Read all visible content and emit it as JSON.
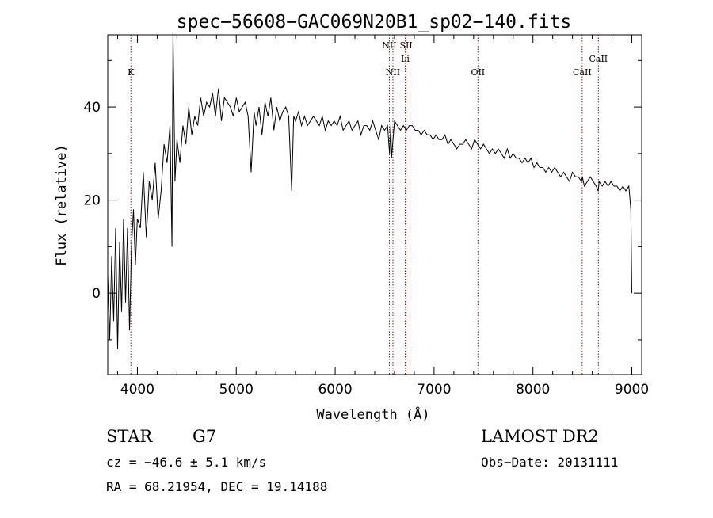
{
  "chart_data": {
    "type": "line",
    "title": "spec−56608−GAC069N20B1_sp02−140.fits",
    "xlabel": "Wavelength (Å)",
    "ylabel": "Flux (relative)",
    "xlim": [
      3700,
      9100
    ],
    "ylim": [
      -17.5,
      55.5
    ],
    "xticks": [
      4000,
      5000,
      6000,
      7000,
      8000,
      9000
    ],
    "yticks": [
      0,
      20,
      40
    ],
    "x_minor_step": 200,
    "y_minor_step": 10,
    "grid": false,
    "series": [
      {
        "x": [
          3700,
          3720,
          3740,
          3760,
          3780,
          3800,
          3820,
          3840,
          3860,
          3880,
          3900,
          3920,
          3940,
          3960,
          3980,
          4000,
          4030,
          4060,
          4090,
          4120,
          4150,
          4180,
          4210,
          4240,
          4270,
          4300,
          4330,
          4350,
          4360,
          4380,
          4400,
          4430,
          4460,
          4490,
          4520,
          4550,
          4580,
          4610,
          4640,
          4670,
          4700,
          4730,
          4760,
          4790,
          4820,
          4850,
          4880,
          4910,
          4940,
          4970,
          5000,
          5030,
          5060,
          5090,
          5120,
          5150,
          5180,
          5200,
          5230,
          5260,
          5290,
          5320,
          5350,
          5380,
          5410,
          5440,
          5470,
          5500,
          5530,
          5560,
          5580,
          5600,
          5630,
          5660,
          5690,
          5720,
          5750,
          5780,
          5810,
          5840,
          5870,
          5900,
          5930,
          5960,
          5990,
          6020,
          6050,
          6080,
          6110,
          6140,
          6170,
          6200,
          6230,
          6260,
          6290,
          6320,
          6350,
          6380,
          6410,
          6440,
          6470,
          6500,
          6530,
          6550,
          6563,
          6570,
          6600,
          6630,
          6660,
          6690,
          6720,
          6750,
          6780,
          6810,
          6840,
          6870,
          6900,
          6930,
          6960,
          6990,
          7020,
          7050,
          7080,
          7110,
          7140,
          7170,
          7200,
          7230,
          7260,
          7290,
          7320,
          7350,
          7380,
          7410,
          7440,
          7470,
          7500,
          7530,
          7560,
          7590,
          7620,
          7650,
          7680,
          7710,
          7740,
          7770,
          7800,
          7830,
          7860,
          7890,
          7920,
          7950,
          7980,
          8010,
          8040,
          8070,
          8100,
          8130,
          8160,
          8190,
          8220,
          8250,
          8280,
          8310,
          8340,
          8370,
          8400,
          8430,
          8460,
          8490,
          8500,
          8520,
          8550,
          8580,
          8610,
          8640,
          8660,
          8670,
          8700,
          8730,
          8760,
          8790,
          8820,
          8850,
          8880,
          8910,
          8940,
          8970,
          8990,
          9000
        ],
        "y": [
          4,
          -10,
          8,
          -6,
          14,
          -12,
          11,
          -4,
          16,
          -2,
          14,
          -8,
          10,
          18,
          6,
          16,
          14,
          26,
          12,
          24,
          20,
          28,
          16,
          22,
          32,
          28,
          36,
          10,
          56,
          24,
          33,
          28,
          36,
          32,
          40,
          34,
          38,
          36,
          42,
          38,
          41,
          40,
          43,
          38,
          44,
          37,
          42,
          41,
          40,
          38,
          42,
          39,
          40,
          41,
          38,
          26,
          39,
          36,
          40,
          34,
          41,
          38,
          42,
          35,
          40,
          37,
          39,
          40,
          38,
          22,
          38,
          37,
          39,
          36,
          38,
          36,
          37,
          38,
          37,
          36,
          38,
          35,
          37,
          36,
          37,
          36,
          38,
          35,
          36,
          37,
          35,
          36,
          37,
          34,
          36,
          36,
          35,
          37,
          35,
          33,
          36,
          35,
          36,
          30,
          36,
          29,
          37,
          36,
          35,
          36,
          35,
          36,
          36,
          35,
          35,
          34,
          35,
          34,
          34,
          33,
          34,
          33,
          33,
          34,
          32,
          33,
          32,
          31,
          32,
          32,
          33,
          32,
          31,
          33,
          32,
          31,
          32,
          31,
          30,
          31,
          30,
          31,
          30,
          29,
          31,
          29,
          30,
          29,
          29,
          28,
          29,
          28,
          29,
          27,
          28,
          27,
          27,
          26,
          27,
          26,
          27,
          26,
          25,
          26,
          25,
          24,
          26,
          25,
          25,
          24,
          25,
          23,
          24,
          25,
          24,
          23,
          22,
          24,
          23,
          24,
          23,
          24,
          23,
          23,
          22,
          23,
          22,
          23,
          18,
          0
        ]
      }
    ],
    "spectral_lines": [
      {
        "label": "K",
        "x": 3934,
        "row": "low"
      },
      {
        "label": "NII",
        "x": 6548,
        "row": "high"
      },
      {
        "label": "SII",
        "x": 6717,
        "row": "high"
      },
      {
        "label": "NII",
        "x": 6584,
        "row": "low"
      },
      {
        "label": "Li",
        "x": 6708,
        "row": "mid"
      },
      {
        "label": "OII",
        "x": 7444,
        "row": "low"
      },
      {
        "label": "CaII",
        "x": 8662,
        "row": "mid"
      },
      {
        "label": "CaII",
        "x": 8498,
        "row": "low"
      }
    ]
  },
  "info": {
    "object_class": "STAR",
    "subclass": "G7",
    "survey": "LAMOST DR2",
    "cz": "cz = −46.6 ± 5.1 km/s",
    "obs_date": "Obs−Date: 20131111",
    "coords": "RA =  68.21954, DEC =  19.14188"
  },
  "colors": {
    "spectrum": "#000000",
    "line_marker": "#8b1a1a"
  }
}
